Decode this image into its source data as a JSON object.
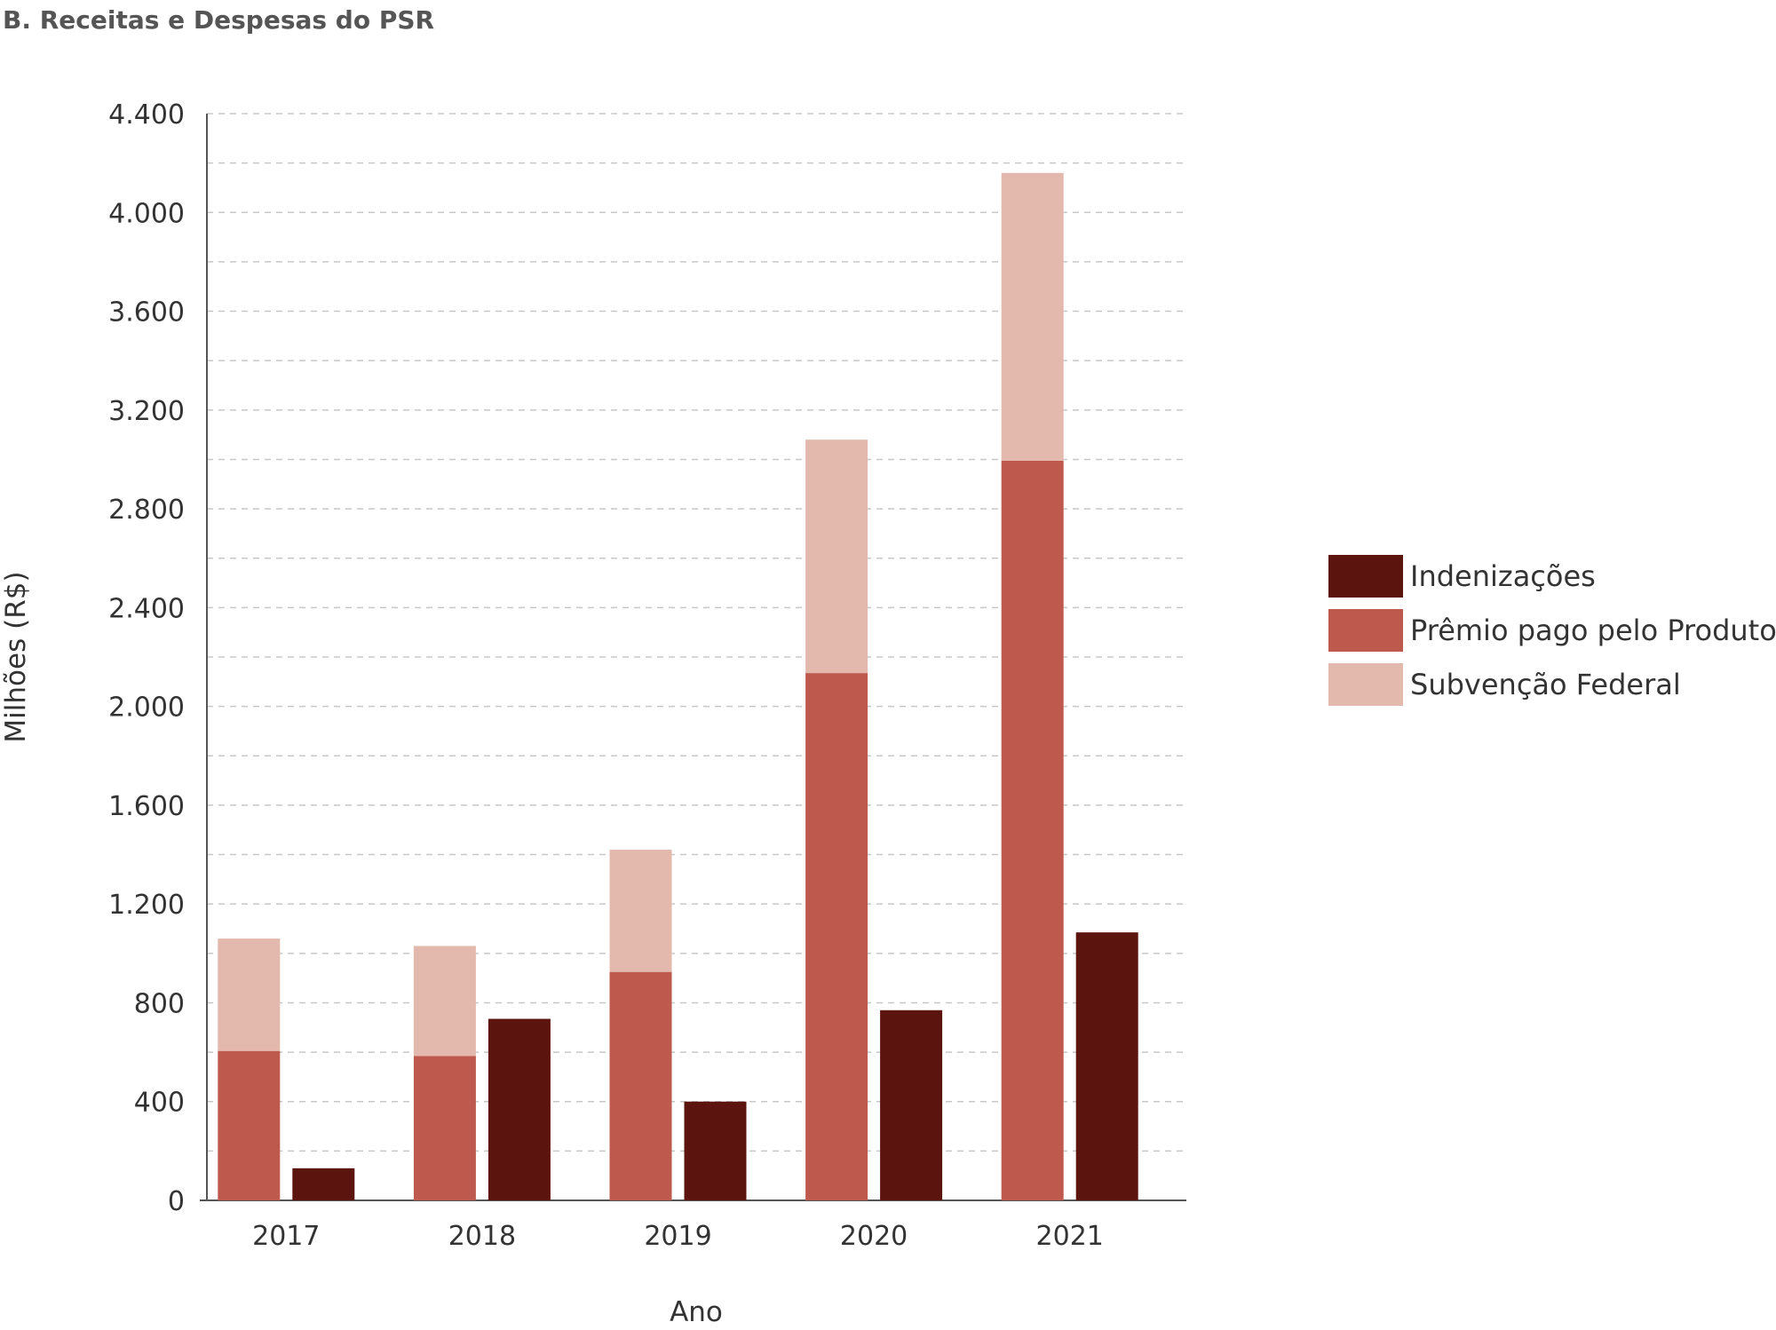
{
  "chart_data": {
    "type": "bar",
    "title": "B. Receitas e Despesas do PSR",
    "xlabel": "Ano",
    "ylabel": "Milhões (R$)",
    "categories": [
      "2017",
      "2018",
      "2019",
      "2020",
      "2021"
    ],
    "ylim": [
      0,
      4400
    ],
    "yticks": [
      0,
      400,
      800,
      1200,
      1600,
      2000,
      2400,
      2800,
      3200,
      3600,
      4000,
      4400
    ],
    "ytick_labels": [
      "0",
      "400",
      "800",
      "1.200",
      "1.600",
      "2.000",
      "2.400",
      "2.800",
      "3.200",
      "3.600",
      "4.000",
      "4.400"
    ],
    "grid": true,
    "legend_position": "right",
    "series": [
      {
        "name": "Prêmio pago pelo Produtor",
        "stack": "receitas",
        "color": "#be5a4d",
        "values": [
          605,
          585,
          925,
          2135,
          2995
        ]
      },
      {
        "name": "Subvenção Federal",
        "stack": "receitas",
        "color": "#e3b9ad",
        "values": [
          455,
          445,
          495,
          945,
          1165
        ]
      },
      {
        "name": "Indenizações",
        "stack": "despesas",
        "color": "#5c140e",
        "values": [
          130,
          735,
          400,
          770,
          1085
        ]
      }
    ],
    "legend": [
      {
        "name": "Indenizações",
        "color": "#5c140e"
      },
      {
        "name": "Prêmio pago pelo Produtor",
        "color": "#be5a4d"
      },
      {
        "name": "Subvenção Federal",
        "color": "#e3b9ad"
      }
    ]
  }
}
